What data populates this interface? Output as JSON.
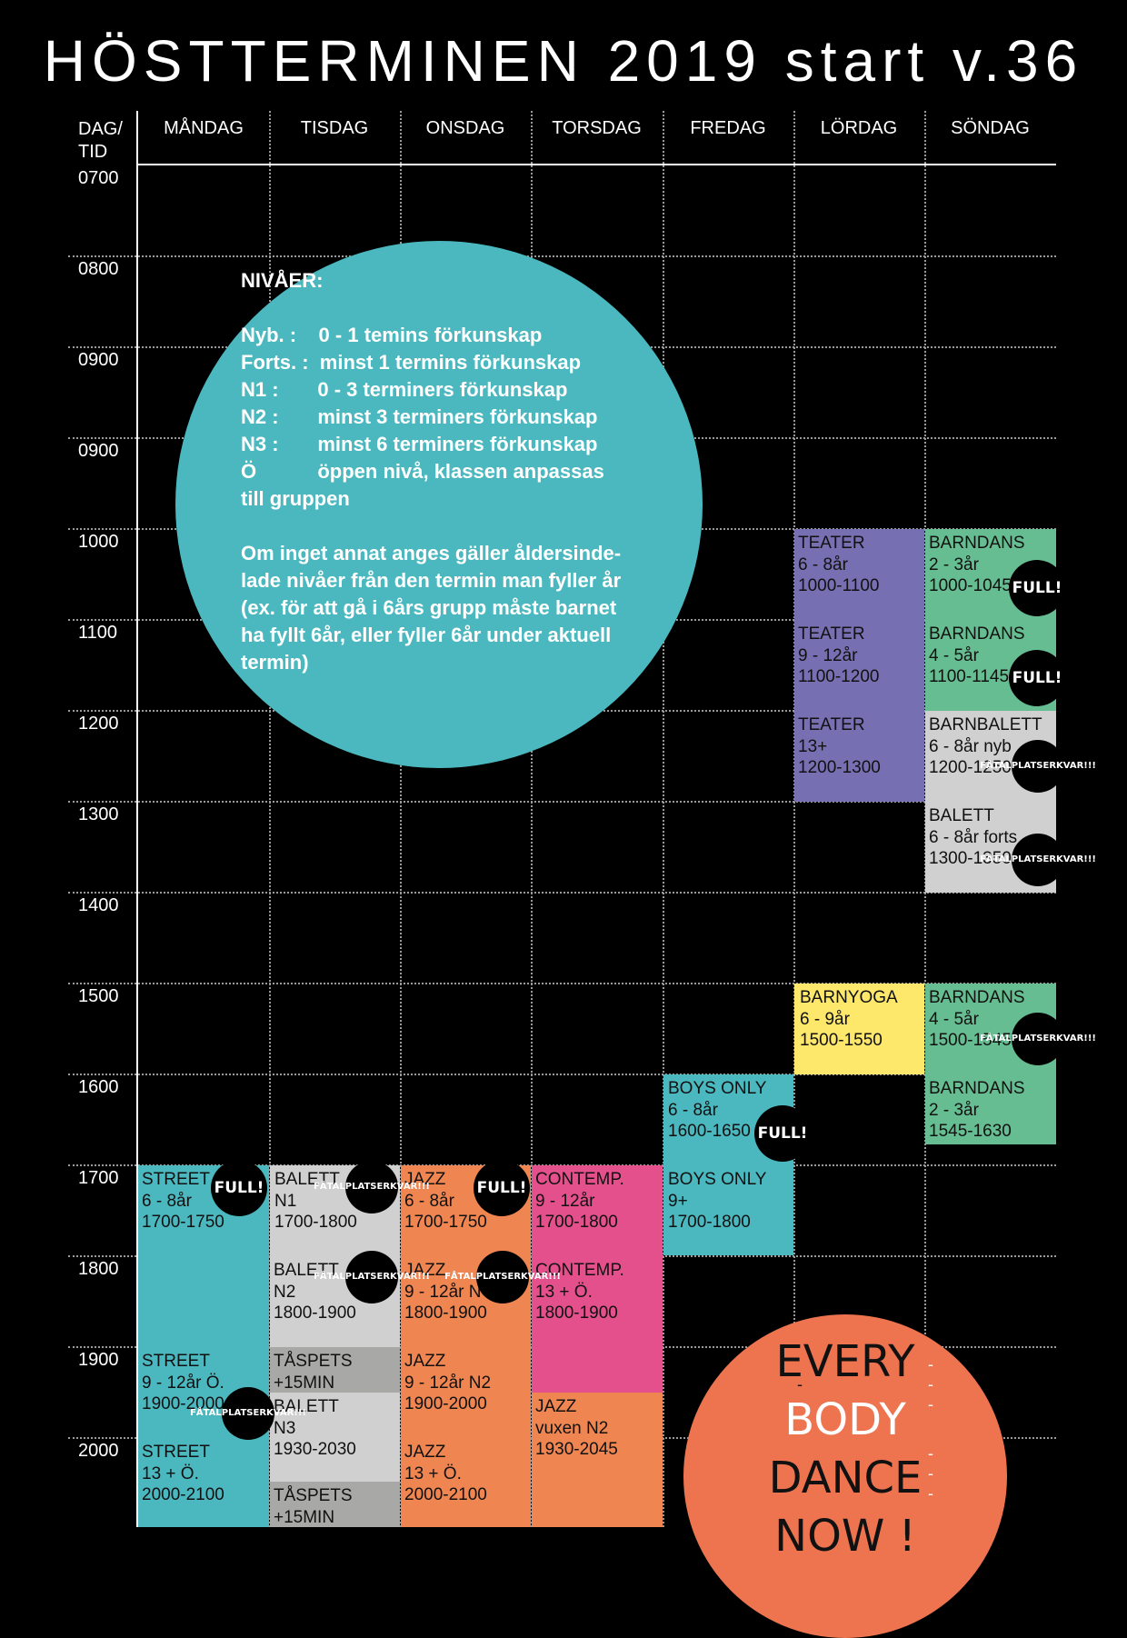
{
  "title": "HÖSTTERMINEN 2019 start v.36",
  "header": {
    "corner_line1": "DAG/",
    "corner_line2": "TID",
    "days": [
      "MÅNDAG",
      "TISDAG",
      "ONSDAG",
      "TORSDAG",
      "FREDAG",
      "LÖRDAG",
      "SÖNDAG"
    ]
  },
  "times": [
    "0700",
    "0800",
    "0900",
    "0900",
    "1000",
    "1100",
    "1200",
    "1300",
    "1400",
    "1500",
    "1600",
    "1700",
    "1800",
    "1900",
    "2000"
  ],
  "info": {
    "text": "NIVÅER:\n\nNyb. :    0 - 1 temins förkunskap\nForts. :  minst 1 termins förkunskap\nN1 :       0 - 3 terminers förkunskap\nN2 :       minst 3 terminers förkunskap\nN3 :       minst 6 terminers förkunskap\nÖ           öppen nivå, klassen anpassas\ntill gruppen\n\nOm inget annat anges gäller åldersinde-\nlade nivåer från den termin man fyller år\n(ex. för att gå i 6års grupp måste barnet\nha fyllt 6år, eller fyller 6år under aktuell\ntermin)"
  },
  "colors": {
    "teal": "#4bb8c0",
    "purple": "#7670b3",
    "green": "#66bd91",
    "lightgray": "#d0d0d0",
    "darkgray": "#a8a8a6",
    "yellow": "#fde86c",
    "orange": "#ef8652",
    "pink": "#e4508c",
    "salmon": "#ee7450"
  },
  "badges": {
    "full": "FULL!",
    "few": "FÅTAL PLATSER KVAR!!!"
  },
  "classes": [
    {
      "day": "LÖRDAG",
      "name": "TEATER",
      "level": "6 - 8år",
      "time": "1000-1100"
    },
    {
      "day": "LÖRDAG",
      "name": "TEATER",
      "level": "9 - 12år",
      "time": "1100-1200"
    },
    {
      "day": "LÖRDAG",
      "name": "TEATER",
      "level": "13+",
      "time": "1200-1300"
    },
    {
      "day": "LÖRDAG",
      "name": "BARNYOGA",
      "level": "6 - 9år",
      "time": "1500-1550"
    },
    {
      "day": "SÖNDAG",
      "name": "BARNDANS",
      "level": "2 - 3år",
      "time": "1000-1045",
      "badge": "FULL!"
    },
    {
      "day": "SÖNDAG",
      "name": "BARNDANS",
      "level": "4 - 5år",
      "time": "1100-1145",
      "badge": "FULL!"
    },
    {
      "day": "SÖNDAG",
      "name": "BARNBALETT",
      "level": "6 - 8år nyb",
      "time": "1200-1250",
      "badge": "FÅTAL PLATSER KVAR!!!"
    },
    {
      "day": "SÖNDAG",
      "name": "BALETT",
      "level": "6 - 8år forts",
      "time": "1300-1350",
      "badge": "FÅTAL PLATSER KVAR!!!"
    },
    {
      "day": "SÖNDAG",
      "name": "BARNDANS",
      "level": "4 - 5år",
      "time": "1500-1545",
      "badge": "FÅTAL PLATSER KVAR!!!"
    },
    {
      "day": "SÖNDAG",
      "name": "BARNDANS",
      "level": "2 - 3år",
      "time": "1545-1630"
    },
    {
      "day": "FREDAG",
      "name": "BOYS ONLY",
      "level": "6 - 8år",
      "time": "1600-1650",
      "badge": "FULL!"
    },
    {
      "day": "FREDAG",
      "name": "BOYS ONLY",
      "level": "9+",
      "time": "1700-1800"
    },
    {
      "day": "MÅNDAG",
      "name": "STREET",
      "level": "6 - 8år",
      "time": "1700-1750",
      "badge": "FULL!"
    },
    {
      "day": "MÅNDAG",
      "name": "STREET",
      "level": "9 - 12år Ö.",
      "time": "1900-2000",
      "badge": "FÅTAL PLATSER KVAR!!!"
    },
    {
      "day": "MÅNDAG",
      "name": "STREET",
      "level": "13 + Ö.",
      "time": "2000-2100"
    },
    {
      "day": "TISDAG",
      "name": "BALETT",
      "level": "N1",
      "time": "1700-1800",
      "badge": "FÅTAL PLATSER KVAR!!!"
    },
    {
      "day": "TISDAG",
      "name": "BALETT",
      "level": "N2",
      "time": "1800-1900",
      "badge": "FÅTAL PLATSER KVAR!!!"
    },
    {
      "day": "TISDAG",
      "name": "TÅSPETS",
      "level": "+15MIN",
      "time": ""
    },
    {
      "day": "TISDAG",
      "name": "BALETT",
      "level": "N3",
      "time": "1930-2030"
    },
    {
      "day": "TISDAG",
      "name": "TÅSPETS",
      "level": "+15MIN",
      "time": ""
    },
    {
      "day": "ONSDAG",
      "name": "JAZZ",
      "level": "6 - 8år",
      "time": "1700-1750",
      "badge": "FULL!"
    },
    {
      "day": "ONSDAG",
      "name": "JAZZ",
      "level": "9 - 12år N",
      "time": "1800-1900",
      "badge": "FÅTAL PLATSER KVAR!!!"
    },
    {
      "day": "ONSDAG",
      "name": "JAZZ",
      "level": "9 - 12år N2",
      "time": "1900-2000"
    },
    {
      "day": "ONSDAG",
      "name": "JAZZ",
      "level": "13 + Ö.",
      "time": "2000-2100"
    },
    {
      "day": "TORSDAG",
      "name": "CONTEMP.",
      "level": "9 - 12år",
      "time": "1700-1800"
    },
    {
      "day": "TORSDAG",
      "name": "CONTEMP.",
      "level": "13 + Ö.",
      "time": "1800-1900"
    },
    {
      "day": "TORSDAG",
      "name": "JAZZ",
      "level": "vuxen N2",
      "time": "1930-2045"
    }
  ],
  "slogan": [
    "EVERY",
    "BODY",
    "DANCE",
    "NOW !"
  ],
  "dash": "-"
}
